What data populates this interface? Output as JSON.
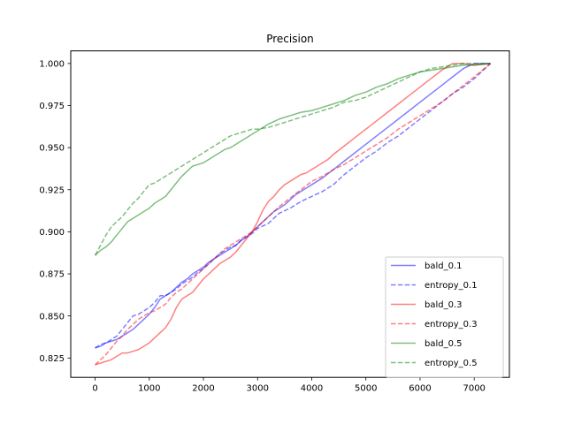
{
  "chart_data": {
    "type": "line",
    "title": "Precision",
    "xlabel": "",
    "ylabel": "",
    "xlim": [
      -450,
      7650
    ],
    "ylim": [
      0.8135,
      1.0075
    ],
    "xticks": [
      0,
      1000,
      2000,
      3000,
      4000,
      5000,
      6000,
      7000
    ],
    "yticks": [
      0.825,
      0.85,
      0.875,
      0.9,
      0.925,
      0.95,
      0.975,
      1.0
    ],
    "ytick_labels": [
      "0.825",
      "0.850",
      "0.875",
      "0.900",
      "0.925",
      "0.950",
      "0.975",
      "1.000"
    ],
    "grid": false,
    "legend_position": "lower-right",
    "series": [
      {
        "name": "bald_0.1",
        "color": "#0000ff",
        "dashed": false,
        "x": [
          0,
          100,
          200,
          300,
          400,
          500,
          600,
          700,
          800,
          900,
          1000,
          1100,
          1200,
          1300,
          1400,
          1500,
          1600,
          1700,
          1800,
          1900,
          2000,
          2100,
          2200,
          2300,
          2400,
          2500,
          2600,
          2700,
          2800,
          2900,
          3000,
          3100,
          3200,
          3300,
          3400,
          3500,
          3600,
          3700,
          3800,
          3900,
          4000,
          4200,
          4400,
          4600,
          4800,
          5000,
          5200,
          5400,
          5600,
          5800,
          6000,
          6200,
          6400,
          6600,
          6800,
          7000,
          7300
        ],
        "y": [
          0.831,
          0.832,
          0.834,
          0.835,
          0.836,
          0.838,
          0.84,
          0.842,
          0.845,
          0.848,
          0.851,
          0.855,
          0.86,
          0.862,
          0.864,
          0.867,
          0.87,
          0.872,
          0.875,
          0.877,
          0.879,
          0.882,
          0.884,
          0.886,
          0.888,
          0.89,
          0.892,
          0.895,
          0.897,
          0.9,
          0.903,
          0.906,
          0.909,
          0.912,
          0.914,
          0.916,
          0.919,
          0.922,
          0.924,
          0.926,
          0.928,
          0.932,
          0.937,
          0.942,
          0.947,
          0.952,
          0.957,
          0.962,
          0.967,
          0.972,
          0.977,
          0.982,
          0.987,
          0.992,
          0.997,
          1.0,
          1.0
        ]
      },
      {
        "name": "entropy_0.1",
        "color": "#0000ff",
        "dashed": true,
        "x": [
          0,
          100,
          200,
          300,
          400,
          500,
          600,
          700,
          800,
          900,
          1000,
          1100,
          1200,
          1300,
          1400,
          1500,
          1600,
          1700,
          1800,
          1900,
          2000,
          2100,
          2200,
          2300,
          2400,
          2500,
          2600,
          2700,
          2800,
          2900,
          3000,
          3200,
          3400,
          3600,
          3800,
          4000,
          4200,
          4400,
          4600,
          4800,
          5000,
          5200,
          5400,
          5600,
          5800,
          6000,
          6200,
          6400,
          6600,
          6800,
          7000,
          7300
        ],
        "y": [
          0.831,
          0.833,
          0.834,
          0.836,
          0.838,
          0.842,
          0.846,
          0.85,
          0.851,
          0.853,
          0.855,
          0.858,
          0.862,
          0.862,
          0.864,
          0.866,
          0.869,
          0.871,
          0.873,
          0.876,
          0.878,
          0.881,
          0.884,
          0.887,
          0.889,
          0.891,
          0.892,
          0.895,
          0.897,
          0.899,
          0.902,
          0.905,
          0.911,
          0.914,
          0.918,
          0.921,
          0.924,
          0.928,
          0.934,
          0.939,
          0.944,
          0.948,
          0.953,
          0.957,
          0.962,
          0.967,
          0.972,
          0.977,
          0.982,
          0.986,
          0.991,
          1.0
        ]
      },
      {
        "name": "bald_0.3",
        "color": "#ff0000",
        "dashed": false,
        "x": [
          0,
          100,
          200,
          300,
          400,
          500,
          600,
          700,
          800,
          900,
          1000,
          1100,
          1200,
          1300,
          1400,
          1500,
          1600,
          1700,
          1800,
          1900,
          2000,
          2100,
          2200,
          2300,
          2400,
          2500,
          2600,
          2700,
          2800,
          2900,
          3000,
          3100,
          3200,
          3300,
          3400,
          3500,
          3600,
          3700,
          3800,
          3900,
          4000,
          4100,
          4200,
          4300,
          4400,
          4600,
          4800,
          5000,
          5200,
          5400,
          5600,
          5800,
          6000,
          6200,
          6400,
          6600,
          6800,
          7000,
          7300
        ],
        "y": [
          0.821,
          0.822,
          0.823,
          0.824,
          0.826,
          0.828,
          0.828,
          0.829,
          0.83,
          0.832,
          0.834,
          0.837,
          0.84,
          0.843,
          0.848,
          0.855,
          0.86,
          0.862,
          0.864,
          0.868,
          0.872,
          0.875,
          0.878,
          0.881,
          0.883,
          0.885,
          0.888,
          0.892,
          0.896,
          0.9,
          0.906,
          0.913,
          0.918,
          0.921,
          0.925,
          0.928,
          0.93,
          0.932,
          0.934,
          0.935,
          0.937,
          0.939,
          0.941,
          0.943,
          0.946,
          0.951,
          0.956,
          0.961,
          0.966,
          0.971,
          0.976,
          0.981,
          0.986,
          0.991,
          0.996,
          1.0,
          1.0,
          0.999,
          1.0
        ]
      },
      {
        "name": "entropy_0.3",
        "color": "#ff0000",
        "dashed": true,
        "x": [
          0,
          100,
          200,
          300,
          400,
          500,
          600,
          700,
          800,
          900,
          1000,
          1100,
          1200,
          1300,
          1400,
          1500,
          1600,
          1700,
          1800,
          1900,
          2000,
          2100,
          2200,
          2300,
          2400,
          2500,
          2600,
          2700,
          2800,
          2900,
          3000,
          3200,
          3400,
          3600,
          3800,
          4000,
          4200,
          4400,
          4600,
          4800,
          5000,
          5200,
          5400,
          5600,
          5800,
          6000,
          6200,
          6400,
          6600,
          6800,
          7000,
          7300
        ],
        "y": [
          0.821,
          0.824,
          0.827,
          0.831,
          0.835,
          0.838,
          0.842,
          0.845,
          0.848,
          0.85,
          0.852,
          0.853,
          0.855,
          0.857,
          0.861,
          0.864,
          0.866,
          0.869,
          0.872,
          0.875,
          0.878,
          0.881,
          0.884,
          0.887,
          0.89,
          0.892,
          0.894,
          0.896,
          0.898,
          0.9,
          0.903,
          0.909,
          0.915,
          0.92,
          0.925,
          0.93,
          0.933,
          0.937,
          0.94,
          0.944,
          0.948,
          0.952,
          0.956,
          0.961,
          0.965,
          0.969,
          0.973,
          0.977,
          0.982,
          0.987,
          0.992,
          1.0
        ]
      },
      {
        "name": "bald_0.5",
        "color": "#008000",
        "dashed": false,
        "x": [
          0,
          100,
          200,
          300,
          400,
          500,
          600,
          700,
          800,
          900,
          1000,
          1100,
          1200,
          1300,
          1400,
          1500,
          1600,
          1700,
          1800,
          1900,
          2000,
          2100,
          2200,
          2300,
          2400,
          2500,
          2600,
          2700,
          2800,
          2900,
          3000,
          3200,
          3400,
          3600,
          3800,
          4000,
          4200,
          4400,
          4600,
          4800,
          5000,
          5200,
          5400,
          5600,
          5800,
          6000,
          6200,
          6400,
          6600,
          6800,
          7000,
          7300
        ],
        "y": [
          0.886,
          0.889,
          0.891,
          0.894,
          0.898,
          0.902,
          0.906,
          0.908,
          0.91,
          0.912,
          0.914,
          0.917,
          0.919,
          0.921,
          0.925,
          0.929,
          0.933,
          0.936,
          0.939,
          0.94,
          0.941,
          0.943,
          0.945,
          0.947,
          0.949,
          0.95,
          0.952,
          0.954,
          0.956,
          0.958,
          0.96,
          0.964,
          0.967,
          0.969,
          0.971,
          0.972,
          0.974,
          0.976,
          0.978,
          0.981,
          0.983,
          0.986,
          0.988,
          0.991,
          0.993,
          0.995,
          0.996,
          0.997,
          0.998,
          0.999,
          0.999,
          1.0
        ]
      },
      {
        "name": "entropy_0.5",
        "color": "#008000",
        "dashed": true,
        "x": [
          0,
          100,
          200,
          300,
          400,
          500,
          600,
          700,
          800,
          900,
          1000,
          1100,
          1200,
          1300,
          1400,
          1500,
          1600,
          1700,
          1800,
          1900,
          2000,
          2100,
          2200,
          2300,
          2400,
          2500,
          2600,
          2700,
          2800,
          2900,
          3000,
          3200,
          3400,
          3600,
          3800,
          4000,
          4200,
          4400,
          4600,
          4800,
          5000,
          5200,
          5400,
          5600,
          5800,
          6000,
          6200,
          6400,
          6600,
          6800,
          7000,
          7300
        ],
        "y": [
          0.886,
          0.892,
          0.898,
          0.903,
          0.906,
          0.909,
          0.913,
          0.917,
          0.92,
          0.924,
          0.928,
          0.929,
          0.931,
          0.933,
          0.935,
          0.937,
          0.939,
          0.941,
          0.943,
          0.945,
          0.947,
          0.949,
          0.951,
          0.953,
          0.955,
          0.957,
          0.958,
          0.959,
          0.96,
          0.961,
          0.961,
          0.962,
          0.964,
          0.966,
          0.968,
          0.97,
          0.972,
          0.974,
          0.977,
          0.978,
          0.98,
          0.983,
          0.986,
          0.989,
          0.992,
          0.995,
          0.997,
          0.998,
          0.999,
          1.0,
          1.0,
          1.0
        ]
      }
    ]
  }
}
